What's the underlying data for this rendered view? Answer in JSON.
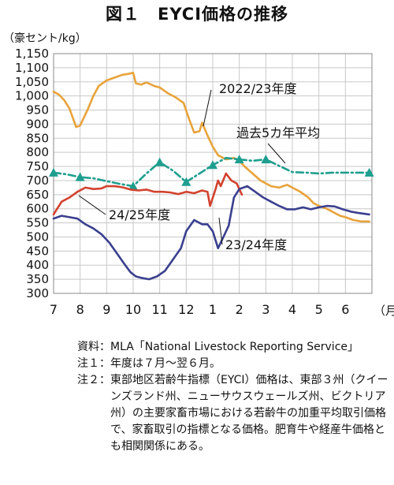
{
  "title": "図１　EYCI価格の推移",
  "unit_label": "（豪セント/kg）",
  "month_unit": "（月）",
  "chart_data": {
    "type": "line",
    "title": "図１　EYCI価格の推移",
    "ylabel": "（豪セント/kg）",
    "xlabel": "（月）",
    "ylim": [
      300,
      1150
    ],
    "yticks": [
      "300",
      "350",
      "400",
      "450",
      "500",
      "550",
      "600",
      "650",
      "700",
      "750",
      "800",
      "850",
      "900",
      "950",
      "1,000",
      "1,050",
      "1,100",
      "1,150"
    ],
    "categories": [
      "7",
      "8",
      "9",
      "10",
      "11",
      "12",
      "1",
      "2",
      "3",
      "4",
      "5",
      "6"
    ],
    "grid": true,
    "series": [
      {
        "name": "2022/23年度",
        "color": "#E8A33A",
        "marker": "none",
        "x": [
          7.0,
          7.2,
          7.4,
          7.6,
          7.85,
          8.0,
          8.3,
          8.5,
          8.7,
          9.0,
          9.3,
          9.6,
          9.8,
          10.0,
          10.1,
          10.3,
          10.5,
          10.8,
          11.0,
          11.3,
          11.6,
          11.9,
          12.1,
          12.3,
          12.5,
          12.6,
          12.8,
          13.0,
          13.2,
          13.5,
          13.8,
          14.0,
          14.2,
          14.5,
          14.8,
          15.0,
          15.2,
          15.5,
          15.8,
          16.0,
          16.3,
          16.6,
          16.8,
          17.0,
          17.3,
          17.6,
          17.8,
          18.0,
          18.3,
          18.6,
          18.9
        ],
        "values": [
          1015,
          1005,
          985,
          955,
          890,
          895,
          955,
          1000,
          1035,
          1055,
          1065,
          1075,
          1078,
          1082,
          1045,
          1040,
          1048,
          1035,
          1030,
          1010,
          995,
          975,
          920,
          870,
          875,
          905,
          860,
          820,
          790,
          775,
          780,
          770,
          750,
          725,
          700,
          690,
          680,
          675,
          685,
          675,
          660,
          640,
          620,
          610,
          600,
          585,
          575,
          570,
          560,
          555,
          555
        ]
      },
      {
        "name": "過去5カ年平均",
        "color": "#1E9E8F",
        "marker": "triangle",
        "x": [
          7.0,
          7.5,
          8.0,
          8.5,
          9.0,
          9.5,
          10.0,
          10.5,
          11.0,
          11.5,
          12.0,
          12.5,
          13.0,
          13.5,
          14.0,
          14.5,
          15.0,
          15.5,
          16.0,
          16.5,
          17.0,
          17.5,
          18.0,
          18.5,
          18.9
        ],
        "values": [
          728,
          722,
          712,
          708,
          698,
          688,
          680,
          725,
          765,
          735,
          695,
          725,
          755,
          780,
          775,
          770,
          775,
          752,
          730,
          728,
          725,
          728,
          728,
          728,
          728
        ]
      },
      {
        "name": "24/25年度",
        "color": "#D2422E",
        "marker": "none",
        "x": [
          7.0,
          7.3,
          7.6,
          7.9,
          8.2,
          8.5,
          8.8,
          9.0,
          9.3,
          9.6,
          9.9,
          10.2,
          10.5,
          10.8,
          11.1,
          11.4,
          11.7,
          12.0,
          12.3,
          12.6,
          12.8,
          12.9,
          13.1,
          13.2,
          13.3,
          13.5,
          13.7,
          13.9,
          14.1
        ],
        "values": [
          580,
          625,
          640,
          660,
          675,
          670,
          672,
          680,
          680,
          676,
          668,
          665,
          668,
          660,
          660,
          658,
          652,
          660,
          655,
          665,
          660,
          610,
          668,
          700,
          680,
          725,
          700,
          690,
          650
        ]
      },
      {
        "name": "23/24年度",
        "color": "#3A3F8F",
        "marker": "none",
        "x": [
          7.0,
          7.3,
          7.6,
          7.9,
          8.2,
          8.5,
          8.8,
          9.1,
          9.4,
          9.7,
          9.9,
          10.1,
          10.3,
          10.6,
          10.9,
          11.2,
          11.5,
          11.8,
          12.0,
          12.3,
          12.6,
          12.8,
          13.0,
          13.2,
          13.4,
          13.6,
          13.8,
          14.0,
          14.3,
          14.6,
          14.9,
          15.2,
          15.5,
          15.8,
          16.1,
          16.4,
          16.7,
          17.0,
          17.3,
          17.6,
          17.9,
          18.2,
          18.5,
          18.9
        ],
        "values": [
          565,
          575,
          570,
          565,
          545,
          530,
          510,
          480,
          440,
          400,
          375,
          360,
          355,
          350,
          360,
          380,
          420,
          460,
          520,
          560,
          545,
          545,
          520,
          460,
          500,
          540,
          640,
          670,
          680,
          660,
          640,
          625,
          610,
          598,
          598,
          605,
          598,
          605,
          610,
          608,
          598,
          590,
          585,
          580
        ]
      }
    ],
    "annotations": [
      {
        "text": "2022/23年度",
        "series": "2022/23年度"
      },
      {
        "text": "過去5カ年平均",
        "series": "過去5カ年平均"
      },
      {
        "text": "24/25年度",
        "series": "24/25年度"
      },
      {
        "text": "23/24年度",
        "series": "23/24年度"
      }
    ]
  },
  "notes": [
    {
      "label": "資料：",
      "text": "MLA「National Livestock Reporting Service」"
    },
    {
      "label": "注１：",
      "text": "年度は７月～翌６月。"
    },
    {
      "label": "注２：",
      "text": "東部地区若齢牛指標（EYCI）価格は、東部３州（クイーンズランド州、ニューサウスウェールズ州、ビクトリア州）の主要家畜市場における若齢牛の加重平均取引価格で、家畜取引の指標となる価格。肥育牛や経産牛価格とも相関関係にある。"
    }
  ]
}
